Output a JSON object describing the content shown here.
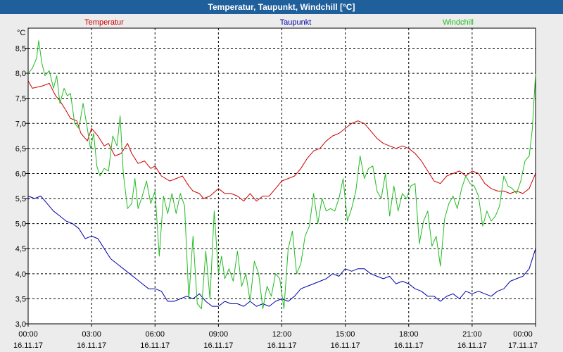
{
  "window": {
    "title": "Temperatur, Taupunkt, Windchill [°C]"
  },
  "chart_data": {
    "type": "line",
    "title": "Temperatur, Taupunkt, Windchill [°C]",
    "ylabel": "°C",
    "xlabel": "",
    "ylim": [
      3.0,
      8.9
    ],
    "xlim": [
      0,
      24
    ],
    "yticks": [
      3.0,
      3.5,
      4.0,
      4.5,
      5.0,
      5.5,
      6.0,
      6.5,
      7.0,
      7.5,
      8.0,
      8.5
    ],
    "ytick_labels": [
      "3,0",
      "3,5",
      "4,0",
      "4,5",
      "5,0",
      "5,5",
      "6,0",
      "6,5",
      "7,0",
      "7,5",
      "8,0",
      "8,5"
    ],
    "xticks": [
      0,
      3,
      6,
      9,
      12,
      15,
      18,
      21,
      24
    ],
    "xtick_times": [
      "00:00",
      "03:00",
      "06:00",
      "09:00",
      "12:00",
      "15:00",
      "18:00",
      "21:00",
      "00:00"
    ],
    "xtick_dates": [
      "16.11.17",
      "16.11.17",
      "16.11.17",
      "16.11.17",
      "16.11.17",
      "16.11.17",
      "16.11.17",
      "16.11.17",
      "17.11.17"
    ],
    "grid": true,
    "series": [
      {
        "name": "Temperatur",
        "color": "#cc0000",
        "x": [
          0,
          0.2,
          0.7,
          1.0,
          1.3,
          1.5,
          1.8,
          2.0,
          2.3,
          2.5,
          2.8,
          3.0,
          3.3,
          3.6,
          3.8,
          4.1,
          4.4,
          4.7,
          4.9,
          5.2,
          5.5,
          5.8,
          6.0,
          6.3,
          6.7,
          7.0,
          7.3,
          7.6,
          7.8,
          8.1,
          8.3,
          8.6,
          9.0,
          9.3,
          9.6,
          9.9,
          10.2,
          10.5,
          10.8,
          11.1,
          11.4,
          11.7,
          12.0,
          12.3,
          12.6,
          12.9,
          13.2,
          13.5,
          13.8,
          14.1,
          14.4,
          14.7,
          15.0,
          15.3,
          15.6,
          15.9,
          16.2,
          16.5,
          16.8,
          17.1,
          17.4,
          17.7,
          18.0,
          18.3,
          18.6,
          18.9,
          19.2,
          19.5,
          19.8,
          20.1,
          20.4,
          20.7,
          21.0,
          21.3,
          21.6,
          21.9,
          22.2,
          22.5,
          22.8,
          23.1,
          23.4,
          23.7,
          24.0
        ],
        "y": [
          7.85,
          7.7,
          7.75,
          7.8,
          7.55,
          7.45,
          7.25,
          7.1,
          7.05,
          6.8,
          6.65,
          6.9,
          6.75,
          6.55,
          6.6,
          6.35,
          6.4,
          6.6,
          6.4,
          6.2,
          6.25,
          6.1,
          6.15,
          5.95,
          5.85,
          5.9,
          5.95,
          5.75,
          5.65,
          5.6,
          5.5,
          5.55,
          5.7,
          5.6,
          5.6,
          5.55,
          5.45,
          5.6,
          5.45,
          5.55,
          5.55,
          5.7,
          5.85,
          5.9,
          5.95,
          6.1,
          6.3,
          6.45,
          6.5,
          6.65,
          6.75,
          6.8,
          6.9,
          7.0,
          7.05,
          7.0,
          6.85,
          6.7,
          6.6,
          6.55,
          6.5,
          6.55,
          6.5,
          6.4,
          6.25,
          6.05,
          5.85,
          5.8,
          5.95,
          6.0,
          6.05,
          5.95,
          6.05,
          6.0,
          5.8,
          5.7,
          5.65,
          5.65,
          5.6,
          5.65,
          5.6,
          5.7,
          6.0
        ]
      },
      {
        "name": "Taupunkt",
        "color": "#0000aa",
        "x": [
          0,
          0.3,
          0.6,
          0.9,
          1.2,
          1.5,
          1.8,
          2.1,
          2.4,
          2.7,
          3.0,
          3.3,
          3.6,
          3.9,
          4.2,
          4.5,
          4.8,
          5.1,
          5.4,
          5.7,
          6.0,
          6.3,
          6.6,
          6.9,
          7.2,
          7.5,
          7.8,
          8.1,
          8.4,
          8.7,
          9.0,
          9.3,
          9.6,
          9.9,
          10.2,
          10.5,
          10.8,
          11.1,
          11.4,
          11.7,
          12.0,
          12.3,
          12.6,
          12.9,
          13.2,
          13.5,
          13.8,
          14.1,
          14.4,
          14.7,
          15.0,
          15.3,
          15.6,
          15.9,
          16.2,
          16.5,
          16.8,
          17.1,
          17.4,
          17.7,
          18.0,
          18.3,
          18.6,
          18.9,
          19.2,
          19.5,
          19.8,
          20.1,
          20.4,
          20.7,
          21.0,
          21.3,
          21.6,
          21.9,
          22.2,
          22.5,
          22.8,
          23.1,
          23.4,
          23.7,
          24.0
        ],
        "y": [
          5.55,
          5.5,
          5.55,
          5.4,
          5.25,
          5.15,
          5.05,
          5.0,
          4.9,
          4.7,
          4.75,
          4.7,
          4.5,
          4.3,
          4.2,
          4.1,
          4.0,
          3.9,
          3.8,
          3.7,
          3.7,
          3.65,
          3.45,
          3.45,
          3.5,
          3.55,
          3.5,
          3.6,
          3.45,
          3.35,
          3.35,
          3.45,
          3.4,
          3.4,
          3.35,
          3.45,
          3.35,
          3.4,
          3.35,
          3.45,
          3.5,
          3.45,
          3.55,
          3.7,
          3.75,
          3.8,
          3.85,
          3.9,
          4.0,
          3.95,
          4.1,
          4.05,
          4.1,
          4.1,
          4.0,
          3.95,
          3.9,
          3.95,
          3.8,
          3.85,
          3.8,
          3.7,
          3.65,
          3.55,
          3.55,
          3.45,
          3.55,
          3.6,
          3.5,
          3.65,
          3.6,
          3.65,
          3.6,
          3.55,
          3.65,
          3.7,
          3.85,
          3.9,
          3.95,
          4.1,
          4.5
        ]
      },
      {
        "name": "Windchill",
        "color": "#22bb22",
        "x": [
          0,
          0.2,
          0.4,
          0.5,
          0.65,
          0.8,
          1.0,
          1.2,
          1.35,
          1.5,
          1.7,
          1.85,
          2.0,
          2.2,
          2.4,
          2.6,
          2.8,
          2.95,
          3.1,
          3.25,
          3.4,
          3.6,
          3.8,
          4.0,
          4.2,
          4.35,
          4.5,
          4.7,
          4.9,
          5.05,
          5.2,
          5.4,
          5.6,
          5.8,
          6.0,
          6.2,
          6.4,
          6.6,
          6.8,
          7.0,
          7.2,
          7.4,
          7.6,
          7.8,
          8.0,
          8.2,
          8.4,
          8.6,
          8.8,
          9.0,
          9.15,
          9.3,
          9.5,
          9.7,
          9.9,
          10.1,
          10.3,
          10.5,
          10.7,
          10.9,
          11.1,
          11.3,
          11.5,
          11.7,
          11.9,
          12.1,
          12.3,
          12.5,
          12.7,
          12.9,
          13.1,
          13.3,
          13.5,
          13.7,
          13.9,
          14.1,
          14.3,
          14.5,
          14.7,
          14.9,
          15.1,
          15.3,
          15.5,
          15.7,
          15.9,
          16.1,
          16.3,
          16.5,
          16.7,
          16.9,
          17.1,
          17.3,
          17.5,
          17.7,
          17.9,
          18.1,
          18.3,
          18.5,
          18.7,
          18.9,
          19.1,
          19.3,
          19.5,
          19.7,
          19.9,
          20.1,
          20.3,
          20.5,
          20.7,
          20.9,
          21.1,
          21.3,
          21.5,
          21.7,
          21.9,
          22.1,
          22.3,
          22.5,
          22.7,
          22.9,
          23.1,
          23.3,
          23.5,
          23.7,
          23.85,
          24.0
        ],
        "y": [
          8.0,
          8.1,
          8.3,
          8.65,
          8.2,
          7.95,
          8.05,
          7.7,
          7.95,
          7.4,
          7.7,
          7.55,
          7.6,
          7.0,
          6.9,
          7.4,
          6.9,
          6.5,
          6.8,
          6.15,
          5.95,
          6.1,
          6.05,
          6.75,
          6.55,
          7.15,
          6.0,
          5.3,
          5.4,
          5.9,
          5.3,
          5.55,
          5.85,
          5.4,
          5.65,
          4.35,
          5.55,
          5.2,
          5.6,
          5.2,
          5.6,
          5.35,
          3.5,
          4.75,
          3.4,
          3.3,
          4.45,
          3.5,
          5.25,
          4.0,
          4.35,
          3.9,
          4.1,
          3.85,
          4.45,
          3.75,
          4.0,
          3.45,
          4.25,
          4.0,
          3.3,
          3.75,
          3.55,
          4.0,
          3.9,
          3.3,
          4.5,
          4.85,
          4.0,
          4.2,
          4.75,
          4.95,
          5.6,
          5.0,
          5.5,
          5.25,
          5.3,
          5.25,
          5.5,
          5.9,
          5.05,
          5.3,
          5.65,
          6.35,
          5.9,
          6.1,
          6.15,
          5.65,
          5.5,
          6.0,
          5.15,
          5.75,
          5.25,
          5.6,
          5.5,
          5.75,
          5.8,
          4.6,
          5.05,
          5.25,
          4.55,
          4.75,
          4.15,
          5.1,
          5.4,
          5.55,
          5.3,
          5.7,
          5.95,
          5.8,
          5.75,
          5.55,
          4.95,
          5.25,
          5.05,
          5.15,
          5.35,
          5.95,
          5.75,
          5.7,
          5.6,
          5.85,
          6.25,
          6.35,
          6.9,
          8.0
        ]
      }
    ]
  }
}
